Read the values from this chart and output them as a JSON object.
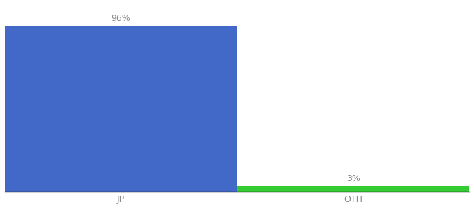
{
  "categories": [
    "JP",
    "OTH"
  ],
  "values": [
    96,
    3
  ],
  "bar_colors": [
    "#4369c8",
    "#33cc33"
  ],
  "labels": [
    "96%",
    "3%"
  ],
  "ylim": [
    0,
    108
  ],
  "background_color": "#ffffff",
  "label_fontsize": 9,
  "tick_fontsize": 9,
  "bar_width": 0.5,
  "x_positions": [
    0.25,
    0.75
  ],
  "xlim": [
    0,
    1.0
  ]
}
